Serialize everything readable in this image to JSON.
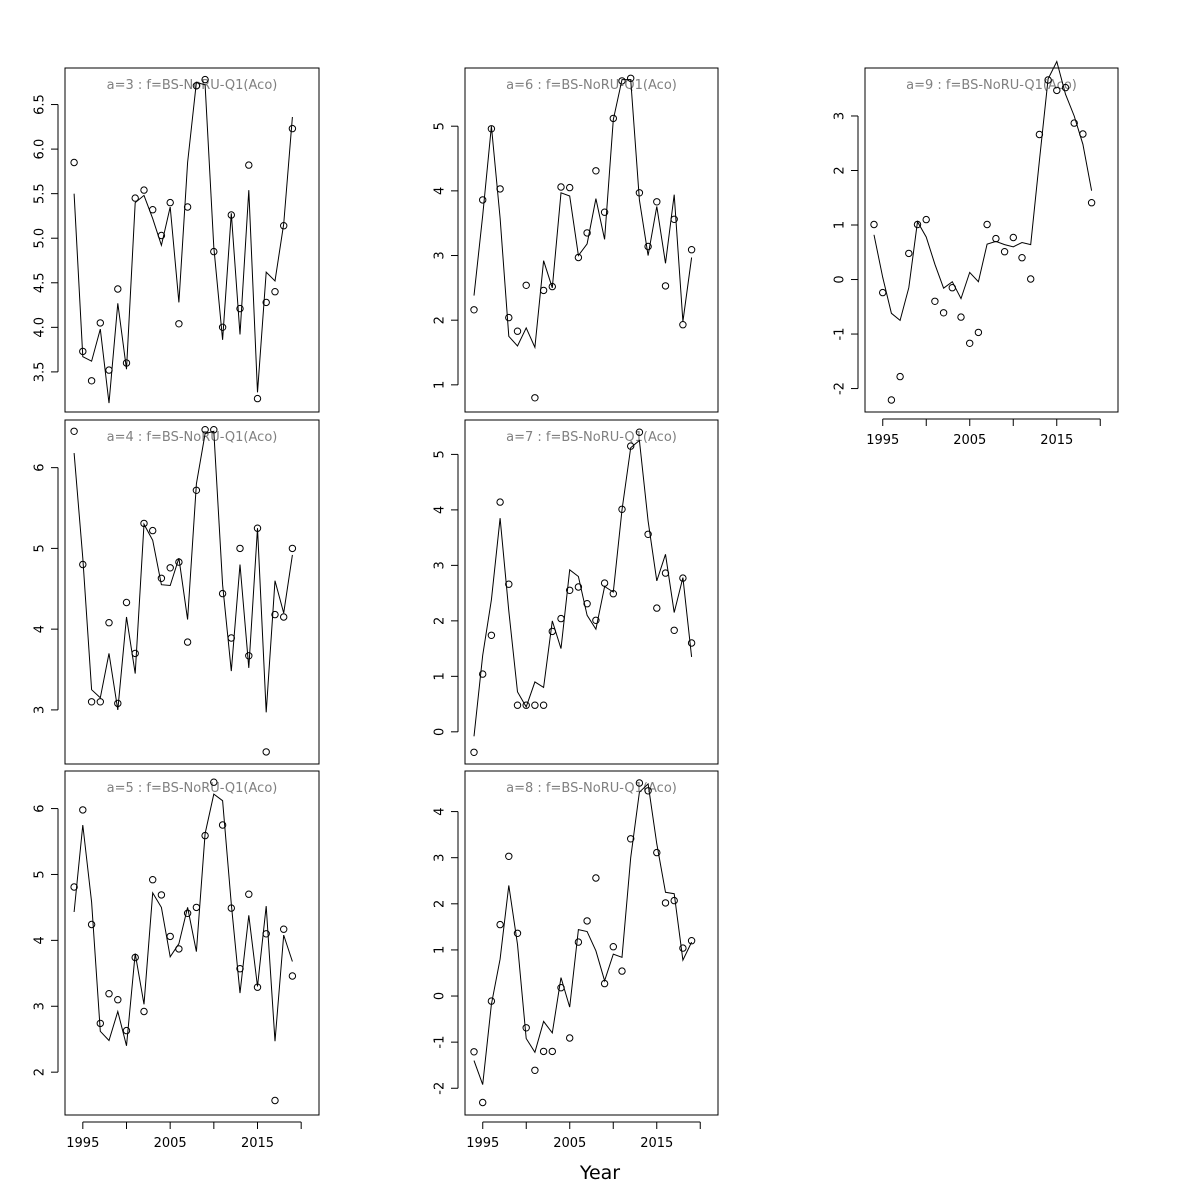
{
  "figure": {
    "xlabel": "Year"
  },
  "chart_data": [
    {
      "type": "line",
      "title": "a=3  :  f=BS-NoRU-Q1(Aco)",
      "x_ticks": [
        1995,
        2005,
        2015
      ],
      "y_ticks": [
        3.5,
        4.0,
        4.5,
        5.0,
        5.5,
        6.0,
        6.5
      ],
      "y_tick_labels": [
        "3.5",
        "4.0",
        "4.5",
        "5.0",
        "5.5",
        "6.0",
        "6.5"
      ],
      "xlim": [
        1992.96,
        2022.04
      ],
      "ylim": [
        3.05,
        6.91
      ],
      "show_x_axis": false,
      "x": [
        1994,
        1995,
        1996,
        1997,
        1998,
        1999,
        2000,
        2001,
        2002,
        2003,
        2004,
        2005,
        2006,
        2007,
        2008,
        2009,
        2010,
        2011,
        2012,
        2013,
        2014,
        2015,
        2016,
        2017,
        2018,
        2019
      ],
      "observed": [
        5.85,
        3.73,
        3.4,
        4.05,
        3.52,
        4.43,
        3.6,
        5.45,
        5.54,
        5.32,
        5.03,
        5.4,
        4.04,
        5.35,
        6.71,
        6.78,
        4.85,
        4.0,
        5.26,
        4.21,
        5.82,
        3.2,
        4.28,
        4.4,
        5.14,
        6.23
      ],
      "fitted": [
        5.5,
        3.67,
        3.62,
        3.98,
        3.15,
        4.27,
        3.53,
        5.4,
        5.48,
        5.22,
        4.92,
        5.35,
        4.28,
        5.85,
        6.75,
        6.72,
        4.9,
        3.86,
        5.28,
        3.92,
        5.54,
        3.27,
        4.62,
        4.52,
        5.16,
        6.36
      ]
    },
    {
      "type": "line",
      "title": "a=4  :  f=BS-NoRU-Q1(Aco)",
      "x_ticks": [
        1995,
        2005,
        2015
      ],
      "y_ticks": [
        3,
        4,
        5,
        6
      ],
      "y_tick_labels": [
        "3",
        "4",
        "5",
        "6"
      ],
      "xlim": [
        1992.96,
        2022.04
      ],
      "ylim": [
        2.33,
        6.59
      ],
      "show_x_axis": false,
      "x": [
        1994,
        1995,
        1996,
        1997,
        1998,
        1999,
        2000,
        2001,
        2002,
        2003,
        2004,
        2005,
        2006,
        2007,
        2008,
        2009,
        2010,
        2011,
        2012,
        2013,
        2014,
        2015,
        2016,
        2017,
        2018,
        2019
      ],
      "observed": [
        6.45,
        4.8,
        3.1,
        3.1,
        4.08,
        3.08,
        4.33,
        3.7,
        5.31,
        5.22,
        4.63,
        4.76,
        4.83,
        3.84,
        5.72,
        6.47,
        6.47,
        4.44,
        3.89,
        5.0,
        3.67,
        5.25,
        2.48,
        4.18,
        4.15,
        5.0
      ],
      "fitted": [
        6.18,
        4.88,
        3.25,
        3.15,
        3.7,
        3.0,
        4.15,
        3.45,
        5.3,
        5.1,
        4.55,
        4.54,
        4.88,
        4.12,
        5.8,
        6.42,
        6.45,
        4.55,
        3.48,
        4.8,
        3.52,
        5.25,
        2.97,
        4.6,
        4.2,
        4.92
      ]
    },
    {
      "type": "line",
      "title": "a=5  :  f=BS-NoRU-Q1(Aco)",
      "x_ticks": [
        1995,
        2005,
        2015
      ],
      "y_ticks": [
        2,
        3,
        4,
        5,
        6
      ],
      "y_tick_labels": [
        "2",
        "3",
        "4",
        "5",
        "6"
      ],
      "xlim": [
        1992.96,
        2022.04
      ],
      "ylim": [
        1.35,
        6.57
      ],
      "show_x_axis": true,
      "x": [
        1994,
        1995,
        1996,
        1997,
        1998,
        1999,
        2000,
        2001,
        2002,
        2003,
        2004,
        2005,
        2006,
        2007,
        2008,
        2009,
        2010,
        2011,
        2012,
        2013,
        2014,
        2015,
        2016,
        2017,
        2018,
        2019
      ],
      "observed": [
        4.81,
        5.98,
        4.24,
        2.74,
        3.19,
        3.1,
        2.63,
        3.74,
        2.92,
        4.92,
        4.69,
        4.06,
        3.87,
        4.41,
        4.5,
        5.59,
        6.4,
        5.75,
        4.49,
        3.57,
        4.7,
        3.29,
        4.1,
        1.57,
        4.17,
        3.46
      ],
      "fitted": [
        4.43,
        5.75,
        4.58,
        2.62,
        2.48,
        2.92,
        2.4,
        3.8,
        3.03,
        4.72,
        4.5,
        3.75,
        3.95,
        4.5,
        3.83,
        5.62,
        6.22,
        6.12,
        4.55,
        3.2,
        4.38,
        3.3,
        4.52,
        2.47,
        4.08,
        3.68
      ]
    },
    {
      "type": "line",
      "title": "a=6  :  f=BS-NoRU-Q1(Aco)",
      "x_ticks": [
        1995,
        2005,
        2015
      ],
      "y_ticks": [
        1,
        2,
        3,
        4,
        5
      ],
      "y_tick_labels": [
        "1",
        "2",
        "3",
        "4",
        "5"
      ],
      "xlim": [
        1992.96,
        2022.04
      ],
      "ylim": [
        0.58,
        5.9
      ],
      "show_x_axis": false,
      "x": [
        1994,
        1995,
        1996,
        1997,
        1998,
        1999,
        2000,
        2001,
        2002,
        2003,
        2004,
        2005,
        2006,
        2007,
        2008,
        2009,
        2010,
        2011,
        2012,
        2013,
        2014,
        2015,
        2016,
        2017,
        2018,
        2019
      ],
      "observed": [
        2.16,
        3.86,
        4.96,
        4.03,
        2.04,
        1.83,
        2.54,
        0.8,
        2.46,
        2.52,
        4.06,
        4.05,
        2.97,
        3.35,
        4.31,
        3.67,
        5.12,
        5.7,
        5.74,
        3.97,
        3.14,
        3.83,
        2.53,
        3.56,
        1.93,
        3.09
      ],
      "fitted": [
        2.38,
        3.62,
        5.0,
        3.58,
        1.75,
        1.6,
        1.88,
        1.58,
        2.92,
        2.5,
        3.97,
        3.92,
        3.0,
        3.18,
        3.88,
        3.25,
        5.1,
        5.72,
        5.72,
        3.86,
        3.0,
        3.76,
        2.88,
        3.94,
        1.98,
        2.97
      ]
    },
    {
      "type": "line",
      "title": "a=7  :  f=BS-NoRU-Q1(Aco)",
      "x_ticks": [
        1995,
        2005,
        2015
      ],
      "y_ticks": [
        0,
        1,
        2,
        3,
        4,
        5
      ],
      "y_tick_labels": [
        "0",
        "1",
        "2",
        "3",
        "4",
        "5"
      ],
      "xlim": [
        1992.96,
        2022.04
      ],
      "ylim": [
        -0.58,
        5.62
      ],
      "show_x_axis": false,
      "x": [
        1994,
        1995,
        1996,
        1997,
        1998,
        1999,
        2000,
        2001,
        2002,
        2003,
        2004,
        2005,
        2006,
        2007,
        2008,
        2009,
        2010,
        2011,
        2012,
        2013,
        2014,
        2015,
        2016,
        2017,
        2018,
        2019
      ],
      "observed": [
        -0.37,
        1.04,
        1.74,
        4.14,
        2.66,
        0.48,
        0.48,
        0.48,
        0.48,
        1.81,
        2.04,
        2.55,
        2.61,
        2.31,
        2.01,
        2.68,
        2.49,
        4.01,
        5.15,
        5.4,
        3.56,
        2.23,
        2.86,
        1.83,
        2.77,
        1.6
      ],
      "fitted": [
        -0.08,
        1.38,
        2.38,
        3.85,
        2.18,
        0.72,
        0.45,
        0.9,
        0.8,
        2.0,
        1.5,
        2.92,
        2.8,
        2.1,
        1.85,
        2.62,
        2.52,
        4.0,
        5.12,
        5.25,
        3.8,
        2.72,
        3.2,
        2.15,
        2.78,
        1.35
      ]
    },
    {
      "type": "line",
      "title": "a=8  :  f=BS-NoRU-Q1(Aco)",
      "x_ticks": [
        1995,
        2005,
        2015
      ],
      "y_ticks": [
        -2,
        -1,
        0,
        1,
        2,
        3,
        4
      ],
      "y_tick_labels": [
        "-2",
        "-1",
        "0",
        "1",
        "2",
        "3",
        "4"
      ],
      "xlim": [
        1992.96,
        2022.04
      ],
      "ylim": [
        -2.58,
        4.88
      ],
      "show_x_axis": true,
      "x": [
        1994,
        1995,
        1996,
        1997,
        1998,
        1999,
        2000,
        2001,
        2002,
        2003,
        2004,
        2005,
        2006,
        2007,
        2008,
        2009,
        2010,
        2011,
        2012,
        2013,
        2014,
        2015,
        2016,
        2017,
        2018,
        2019
      ],
      "observed": [
        -1.21,
        -2.31,
        -0.11,
        1.55,
        3.03,
        1.36,
        -0.69,
        -1.61,
        -1.2,
        -1.2,
        0.18,
        -0.91,
        1.17,
        1.63,
        2.56,
        0.27,
        1.07,
        0.54,
        3.41,
        4.62,
        4.45,
        3.11,
        2.02,
        2.07,
        1.04,
        1.2
      ],
      "fitted": [
        -1.4,
        -1.92,
        -0.18,
        0.8,
        2.4,
        1.12,
        -0.92,
        -1.22,
        -0.55,
        -0.8,
        0.4,
        -0.24,
        1.44,
        1.4,
        0.98,
        0.33,
        0.91,
        0.84,
        3.0,
        4.42,
        4.6,
        3.3,
        2.25,
        2.22,
        0.78,
        1.17
      ]
    },
    {
      "type": "line",
      "title": "a=9  :  f=BS-NoRU-Q1(Aco)",
      "x_ticks": [
        1995,
        2005,
        2015
      ],
      "y_ticks": [
        -2,
        -1,
        0,
        1,
        2,
        3
      ],
      "y_tick_labels": [
        "-2",
        "-1",
        "0",
        "1",
        "2",
        "3"
      ],
      "xlim": [
        1992.96,
        2022.04
      ],
      "ylim": [
        -2.43,
        3.88
      ],
      "show_x_axis": true,
      "x": [
        1994,
        1995,
        1996,
        1997,
        1998,
        1999,
        2000,
        2001,
        2002,
        2003,
        2004,
        2005,
        2006,
        2007,
        2008,
        2009,
        2010,
        2011,
        2012,
        2013,
        2014,
        2015,
        2016,
        2017,
        2018,
        2019
      ],
      "observed": [
        1.01,
        -0.24,
        -2.21,
        -1.78,
        0.48,
        1.01,
        1.1,
        -0.4,
        -0.61,
        -0.15,
        -0.69,
        -1.17,
        -0.97,
        1.01,
        0.75,
        0.51,
        0.77,
        0.4,
        0.01,
        2.66,
        3.66,
        3.47,
        3.52,
        2.87,
        2.67,
        1.41
      ],
      "fitted": [
        0.82,
        0.04,
        -0.62,
        -0.75,
        -0.15,
        1.06,
        0.78,
        0.28,
        -0.16,
        -0.04,
        -0.35,
        0.13,
        -0.04,
        0.65,
        0.7,
        0.64,
        0.6,
        0.68,
        0.64,
        2.18,
        3.68,
        4.0,
        3.4,
        3.0,
        2.48,
        1.63
      ]
    }
  ]
}
